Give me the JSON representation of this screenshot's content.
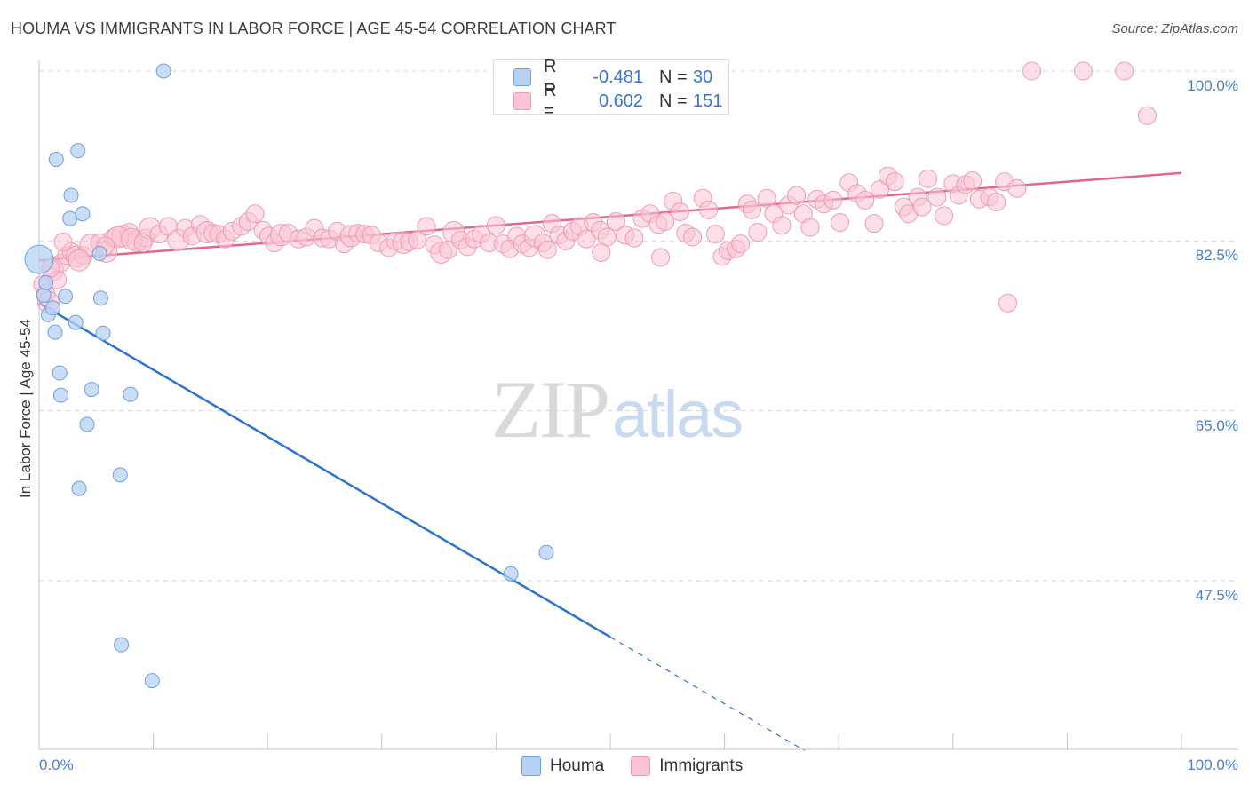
{
  "title": "HOUMA VS IMMIGRANTS IN LABOR FORCE | AGE 45-54 CORRELATION CHART",
  "source": "Source: ZipAtlas.com",
  "watermark": {
    "zip": "ZIP",
    "atlas": "atlas"
  },
  "colors": {
    "houma_fill": "#b8d1f3",
    "houma_stroke": "#6e9fe0",
    "houma_line": "#2e73d0",
    "imm_fill": "#f9c4d3",
    "imm_stroke": "#ef9ab3",
    "imm_line": "#e0678f",
    "tick_label": "#4a7fd0",
    "grid": "#d6d6d6"
  },
  "legend": {
    "rows": [
      {
        "r_label": "R =",
        "r_value": "-0.481",
        "n_label": "N =",
        "n_value": "30"
      },
      {
        "r_label": "R =",
        "r_value": "0.602",
        "n_label": "N =",
        "n_value": "151"
      }
    ]
  },
  "bottom_legend": [
    "Houma",
    "Immigrants"
  ],
  "chart_data": {
    "type": "scatter",
    "title": "HOUMA VS IMMIGRANTS IN LABOR FORCE | AGE 45-54 CORRELATION CHART",
    "xlabel": "",
    "ylabel": "In Labor Force | Age 45-54",
    "xlim": [
      0,
      100
    ],
    "ylim": [
      30,
      101
    ],
    "y_ticks": [
      {
        "value": 100,
        "label": "100.0%"
      },
      {
        "value": 82.5,
        "label": "82.5%"
      },
      {
        "value": 65,
        "label": "65.0%"
      },
      {
        "value": 47.5,
        "label": "47.5%"
      }
    ],
    "x_tick_labels": [
      {
        "value": 0,
        "label": "0.0%"
      },
      {
        "value": 100,
        "label": "100.0%"
      }
    ],
    "x_minor_ticks": [
      0,
      10,
      20,
      30,
      40,
      50,
      60,
      70,
      80,
      90,
      100
    ],
    "grid": "horizontal dashed",
    "legend_placement": "top-center",
    "series": [
      {
        "name": "Houma",
        "trend": {
          "x": [
            0,
            50
          ],
          "y": [
            76.1,
            41.7
          ],
          "extended_to_x": 67
        },
        "points": [
          [
            0.0,
            80.6,
            16
          ],
          [
            0.4,
            76.9,
            8
          ],
          [
            0.6,
            78.2,
            8
          ],
          [
            0.8,
            74.9,
            8
          ],
          [
            1.2,
            75.6,
            8
          ],
          [
            1.4,
            73.1,
            8
          ],
          [
            1.5,
            90.9,
            8
          ],
          [
            1.8,
            68.9,
            8
          ],
          [
            1.9,
            66.6,
            8
          ],
          [
            2.3,
            76.8,
            8
          ],
          [
            2.7,
            84.8,
            8
          ],
          [
            2.8,
            87.2,
            8
          ],
          [
            3.2,
            74.1,
            8
          ],
          [
            3.4,
            91.8,
            8
          ],
          [
            3.5,
            57.0,
            8
          ],
          [
            3.8,
            85.3,
            8
          ],
          [
            4.2,
            63.6,
            8
          ],
          [
            4.6,
            67.2,
            8
          ],
          [
            5.3,
            81.2,
            8
          ],
          [
            5.4,
            76.6,
            8
          ],
          [
            5.6,
            73.0,
            8
          ],
          [
            7.1,
            58.4,
            8
          ],
          [
            7.2,
            40.9,
            8
          ],
          [
            8.0,
            66.7,
            8
          ],
          [
            9.9,
            37.2,
            8
          ],
          [
            10.9,
            100.0,
            8
          ],
          [
            41.3,
            48.2,
            8
          ],
          [
            44.4,
            50.4,
            8
          ]
        ]
      },
      {
        "name": "Immigrants",
        "trend": {
          "x": [
            0,
            100
          ],
          "y": [
            80.5,
            89.5
          ]
        },
        "points": [
          [
            0.3,
            78.0,
            10
          ],
          [
            0.6,
            77.1,
            10
          ],
          [
            0.8,
            76.2,
            12
          ],
          [
            1.2,
            79.5,
            12
          ],
          [
            1.6,
            78.5,
            10
          ],
          [
            1.9,
            80.2,
            10
          ],
          [
            2.4,
            81.0,
            10
          ],
          [
            2.8,
            81.4,
            10
          ],
          [
            3.3,
            80.9,
            12
          ],
          [
            3.9,
            81.0,
            10
          ],
          [
            4.5,
            82.1,
            12
          ],
          [
            5.3,
            82.3,
            10
          ],
          [
            5.9,
            81.4,
            12
          ],
          [
            6.5,
            82.8,
            10
          ],
          [
            7.3,
            83.0,
            12
          ],
          [
            7.9,
            83.4,
            10
          ],
          [
            8.6,
            82.5,
            12
          ],
          [
            9.3,
            82.8,
            10
          ],
          [
            9.7,
            83.8,
            12
          ],
          [
            10.5,
            83.2,
            10
          ],
          [
            11.3,
            84.0,
            10
          ],
          [
            12.2,
            82.6,
            12
          ],
          [
            12.8,
            83.8,
            10
          ],
          [
            13.4,
            83.0,
            10
          ],
          [
            14.1,
            84.2,
            10
          ],
          [
            14.7,
            83.4,
            12
          ],
          [
            15.2,
            83.3,
            10
          ],
          [
            15.7,
            83.2,
            10
          ],
          [
            16.3,
            82.7,
            10
          ],
          [
            16.9,
            83.5,
            10
          ],
          [
            17.7,
            84.0,
            10
          ],
          [
            18.3,
            84.5,
            10
          ],
          [
            18.9,
            85.3,
            10
          ],
          [
            19.6,
            83.6,
            10
          ],
          [
            20.1,
            83.0,
            10
          ],
          [
            20.6,
            82.3,
            10
          ],
          [
            21.2,
            83.1,
            12
          ],
          [
            21.8,
            83.3,
            10
          ],
          [
            22.7,
            82.7,
            10
          ],
          [
            23.4,
            82.9,
            10
          ],
          [
            24.1,
            83.8,
            10
          ],
          [
            24.8,
            82.8,
            10
          ],
          [
            25.4,
            82.7,
            10
          ],
          [
            26.1,
            83.5,
            10
          ],
          [
            26.7,
            82.2,
            10
          ],
          [
            27.3,
            83.0,
            12
          ],
          [
            27.9,
            83.3,
            10
          ],
          [
            28.5,
            83.2,
            10
          ],
          [
            29.1,
            83.1,
            10
          ],
          [
            29.7,
            82.3,
            10
          ],
          [
            30.6,
            81.8,
            10
          ],
          [
            31.2,
            82.5,
            10
          ],
          [
            31.9,
            82.3,
            12
          ],
          [
            32.4,
            82.4,
            10
          ],
          [
            33.1,
            82.6,
            10
          ],
          [
            33.9,
            84.0,
            10
          ],
          [
            34.6,
            82.1,
            10
          ],
          [
            35.2,
            81.3,
            12
          ],
          [
            35.8,
            81.6,
            10
          ],
          [
            36.3,
            83.4,
            12
          ],
          [
            36.9,
            82.6,
            10
          ],
          [
            37.5,
            81.9,
            10
          ],
          [
            38.1,
            82.7,
            10
          ],
          [
            38.7,
            83.2,
            10
          ],
          [
            39.4,
            82.3,
            10
          ],
          [
            40.0,
            84.1,
            10
          ],
          [
            40.6,
            82.2,
            10
          ],
          [
            41.2,
            81.7,
            10
          ],
          [
            41.8,
            83.0,
            10
          ],
          [
            42.3,
            82.2,
            10
          ],
          [
            42.9,
            81.8,
            10
          ],
          [
            43.4,
            83.0,
            12
          ],
          [
            44.1,
            82.3,
            10
          ],
          [
            44.9,
            84.3,
            10
          ],
          [
            45.5,
            83.1,
            10
          ],
          [
            46.1,
            82.5,
            10
          ],
          [
            46.7,
            83.5,
            10
          ],
          [
            47.3,
            84.0,
            10
          ],
          [
            47.9,
            82.7,
            10
          ],
          [
            48.5,
            84.4,
            10
          ],
          [
            49.1,
            83.6,
            10
          ],
          [
            49.7,
            82.9,
            10
          ],
          [
            50.5,
            84.5,
            10
          ],
          [
            51.3,
            83.1,
            10
          ],
          [
            52.1,
            82.8,
            10
          ],
          [
            52.8,
            84.8,
            10
          ],
          [
            53.5,
            85.3,
            10
          ],
          [
            54.2,
            84.2,
            10
          ],
          [
            54.8,
            84.5,
            10
          ],
          [
            55.5,
            86.6,
            10
          ],
          [
            56.1,
            85.5,
            10
          ],
          [
            56.6,
            83.3,
            10
          ],
          [
            57.2,
            82.9,
            10
          ],
          [
            58.1,
            86.9,
            10
          ],
          [
            58.6,
            85.7,
            10
          ],
          [
            59.2,
            83.2,
            10
          ],
          [
            59.8,
            80.9,
            10
          ],
          [
            60.3,
            81.5,
            10
          ],
          [
            61.0,
            81.7,
            10
          ],
          [
            61.4,
            82.2,
            10
          ],
          [
            62.0,
            86.3,
            10
          ],
          [
            62.4,
            85.7,
            10
          ],
          [
            62.9,
            83.4,
            10
          ],
          [
            63.7,
            86.9,
            10
          ],
          [
            64.3,
            85.3,
            10
          ],
          [
            65.0,
            84.1,
            10
          ],
          [
            65.6,
            86.2,
            10
          ],
          [
            66.3,
            87.2,
            10
          ],
          [
            66.9,
            85.3,
            10
          ],
          [
            67.5,
            83.9,
            10
          ],
          [
            68.1,
            86.8,
            10
          ],
          [
            68.7,
            86.3,
            10
          ],
          [
            69.5,
            86.7,
            10
          ],
          [
            70.1,
            84.4,
            10
          ],
          [
            70.9,
            88.5,
            10
          ],
          [
            71.6,
            87.4,
            10
          ],
          [
            72.3,
            86.7,
            10
          ],
          [
            73.1,
            84.3,
            10
          ],
          [
            73.6,
            87.8,
            10
          ],
          [
            74.3,
            89.2,
            10
          ],
          [
            74.9,
            88.6,
            10
          ],
          [
            75.7,
            86.0,
            10
          ],
          [
            76.1,
            85.3,
            10
          ],
          [
            76.9,
            87.0,
            10
          ],
          [
            77.3,
            86.0,
            10
          ],
          [
            77.8,
            88.9,
            10
          ],
          [
            78.6,
            87.0,
            10
          ],
          [
            79.2,
            85.1,
            10
          ],
          [
            80.0,
            88.4,
            10
          ],
          [
            80.5,
            87.2,
            10
          ],
          [
            81.1,
            88.3,
            10
          ],
          [
            81.7,
            88.7,
            10
          ],
          [
            82.3,
            86.8,
            10
          ],
          [
            83.2,
            87.0,
            10
          ],
          [
            83.8,
            86.5,
            10
          ],
          [
            84.5,
            88.6,
            10
          ],
          [
            84.8,
            76.1,
            10
          ],
          [
            85.6,
            87.9,
            10
          ],
          [
            86.9,
            100.0,
            10
          ],
          [
            91.4,
            100.0,
            10
          ],
          [
            95.0,
            100.0,
            10
          ],
          [
            97.0,
            95.4,
            10
          ],
          [
            6.9,
            82.9,
            12
          ],
          [
            2.1,
            82.4,
            10
          ],
          [
            5.8,
            82.0,
            10
          ],
          [
            8.1,
            82.7,
            12
          ],
          [
            9.1,
            82.3,
            10
          ],
          [
            3.5,
            80.5,
            12
          ],
          [
            1.0,
            79.7,
            10
          ],
          [
            44.5,
            81.6,
            10
          ],
          [
            49.2,
            81.3,
            10
          ],
          [
            54.4,
            80.8,
            10
          ]
        ]
      }
    ]
  }
}
